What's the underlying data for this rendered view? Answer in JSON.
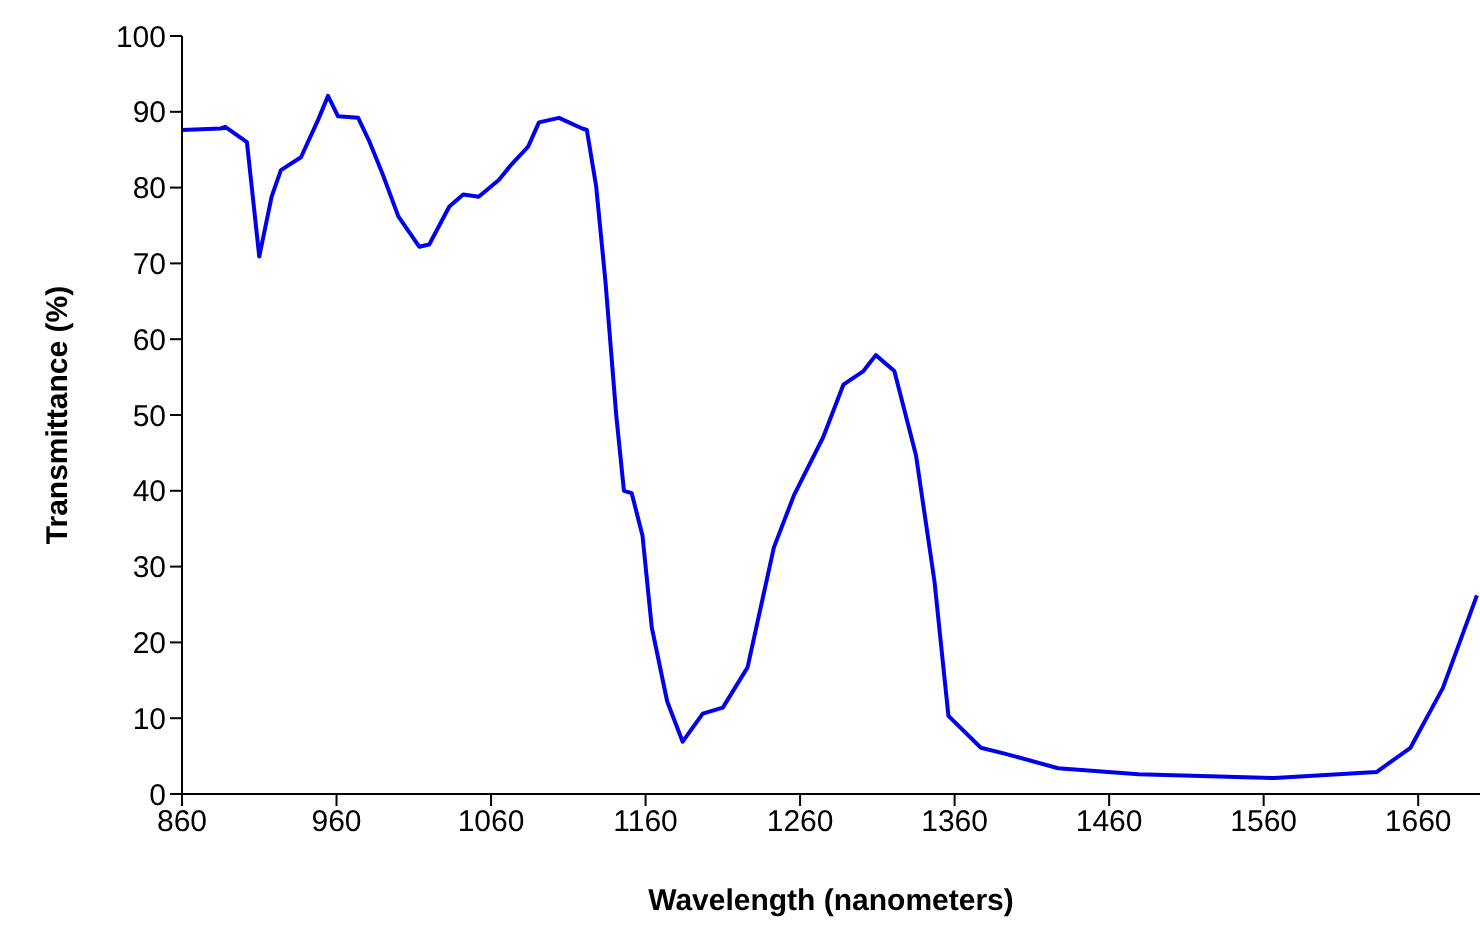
{
  "chart_data": {
    "type": "line",
    "xlabel": "Wavelength (nanometers)",
    "ylabel": "Transmittance (%)",
    "x": [
      860,
      885,
      888,
      902,
      910,
      918,
      924,
      937,
      948,
      954.5,
      961,
      974,
      981,
      990,
      1000,
      1013.5,
      1020,
      1033,
      1042,
      1052,
      1065,
      1073,
      1084,
      1091,
      1104,
      1119,
      1122,
      1128,
      1134,
      1141,
      1146,
      1151,
      1158,
      1164,
      1174,
      1184,
      1197,
      1210,
      1226,
      1243,
      1256,
      1275,
      1288,
      1301,
      1309,
      1321,
      1335,
      1347,
      1356,
      1377,
      1393,
      1427,
      1479,
      1567,
      1633,
      1655,
      1676,
      1698
    ],
    "series": [
      {
        "color": "#0000ee",
        "values": [
          87.6,
          87.8,
          88,
          86,
          70.9,
          78.8,
          82.3,
          84,
          88.9,
          92.1,
          89.4,
          89.2,
          86.2,
          81.7,
          76.2,
          72.2,
          72.5,
          77.5,
          79.1,
          78.8,
          81,
          83,
          85.4,
          88.6,
          89.2,
          87.8,
          87.6,
          80.2,
          67.7,
          50,
          40,
          39.7,
          34.1,
          22,
          12.2,
          6.9,
          10.6,
          11.4,
          16.7,
          32.5,
          39.4,
          47.1,
          54,
          55.8,
          57.9,
          55.8,
          44.7,
          28,
          10.3,
          6.1,
          5.3,
          3.4,
          2.6,
          2.1,
          2.9,
          6.1,
          14,
          26.2
        ]
      }
    ],
    "xlim": [
      860,
      1700
    ],
    "xticks": [
      860,
      960,
      1060,
      1160,
      1260,
      1360,
      1460,
      1560,
      1660
    ],
    "ylim": [
      0,
      100
    ],
    "yticks": [
      0,
      10,
      20,
      30,
      40,
      50,
      60,
      70,
      80,
      90,
      100
    ],
    "grid": false,
    "legend": false,
    "marker": "none",
    "line_style": "solid"
  }
}
